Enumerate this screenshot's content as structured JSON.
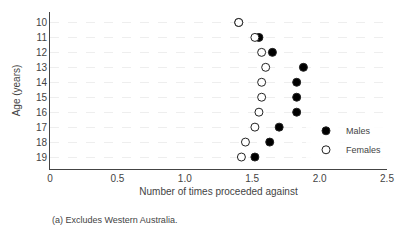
{
  "chart_data": {
    "type": "scatter",
    "y": [
      10,
      11,
      12,
      13,
      14,
      15,
      16,
      17,
      18,
      19
    ],
    "series": [
      {
        "name": "Males",
        "color": "#000000",
        "marker": "circle",
        "x": [
          1.4,
          1.55,
          1.65,
          1.88,
          1.83,
          1.83,
          1.83,
          1.7,
          1.63,
          1.52
        ]
      },
      {
        "name": "Females",
        "color": "#ffffff",
        "marker": "circle",
        "x": [
          1.4,
          1.52,
          1.57,
          1.6,
          1.57,
          1.57,
          1.55,
          1.52,
          1.45,
          1.42
        ]
      }
    ],
    "xlabel": "Number of times proceeded against",
    "ylabel": "Age (years)",
    "annotations": [
      "(a) Excludes Western Australia."
    ],
    "xlim": [
      0,
      2.5
    ],
    "xticks": [
      0,
      0.5,
      {
        "value": 1,
        "label": "1.0"
      },
      1.5,
      {
        "value": 2,
        "label": "2.0"
      },
      2.5
    ],
    "ylim": [
      19.8,
      9.3
    ],
    "yticks": [
      10,
      11,
      12,
      13,
      14,
      15,
      16,
      17,
      18,
      19
    ],
    "grid": true,
    "legend": "lower right"
  }
}
